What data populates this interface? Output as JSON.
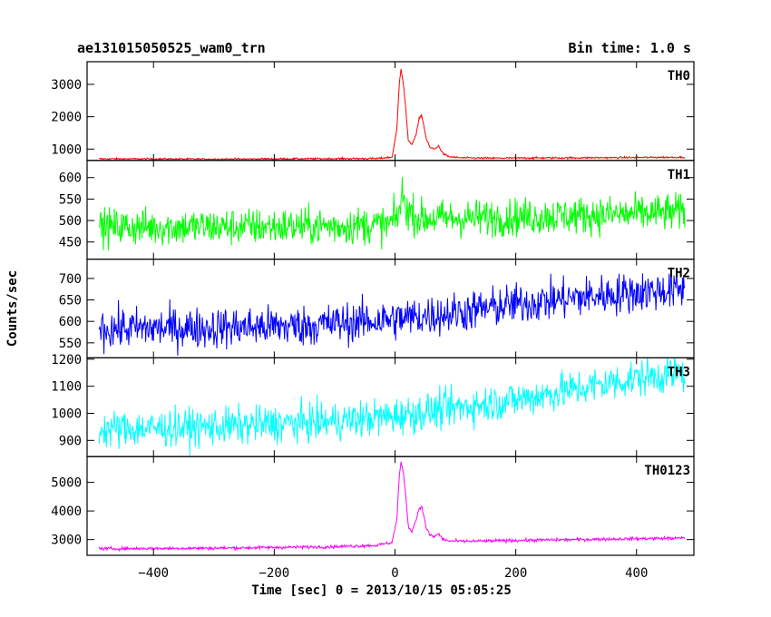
{
  "header": {
    "title": "ae131015050525_wam0_trn",
    "bin_time": "Bin time: 1.0 s"
  },
  "chart_data": {
    "type": "line",
    "title": "ae131015050525_wam0_trn",
    "subtitle": "Bin time: 1.0 s",
    "xlabel": "Time [sec] 0 = 2013/10/15 05:05:25",
    "ylabel": "Counts/sec",
    "xlim": [
      -510,
      495
    ],
    "x_ticks": [
      -400,
      -200,
      0,
      200,
      400
    ],
    "grid": false,
    "panels": [
      {
        "name": "TH0",
        "color": "#ff0000",
        "ylim": [
          650,
          3700
        ],
        "y_ticks": [
          1000,
          2000,
          3000
        ],
        "noise": 14,
        "x": [
          -490,
          -300,
          -100,
          -30,
          -5,
          3,
          7,
          10,
          14,
          18,
          22,
          28,
          35,
          40,
          44,
          48,
          52,
          58,
          65,
          72,
          80,
          90,
          110,
          150,
          200,
          300,
          400,
          480
        ],
        "y": [
          700,
          690,
          705,
          710,
          750,
          1600,
          3000,
          3500,
          3000,
          2200,
          1250,
          1150,
          1450,
          1950,
          2050,
          1700,
          1300,
          1050,
          1000,
          1100,
          850,
          760,
          730,
          720,
          725,
          730,
          740,
          750
        ]
      },
      {
        "name": "TH1",
        "color": "#00ff00",
        "ylim": [
          410,
          640
        ],
        "y_ticks": [
          450,
          500,
          550,
          600
        ],
        "noise": 22,
        "x": [
          -490,
          -300,
          -100,
          -10,
          5,
          12,
          20,
          40,
          100,
          200,
          300,
          400,
          480
        ],
        "y": [
          485,
          485,
          487,
          490,
          510,
          560,
          525,
          505,
          505,
          508,
          512,
          515,
          520
        ]
      },
      {
        "name": "TH2",
        "color": "#0000ff",
        "ylim": [
          515,
          745
        ],
        "y_ticks": [
          550,
          600,
          650,
          700
        ],
        "noise": 24,
        "x": [
          -490,
          -300,
          -150,
          0,
          100,
          200,
          300,
          400,
          480
        ],
        "y": [
          583,
          585,
          590,
          605,
          620,
          640,
          655,
          668,
          675
        ]
      },
      {
        "name": "TH3",
        "color": "#00ffff",
        "ylim": [
          840,
          1205
        ],
        "y_ticks": [
          900,
          1000,
          1100,
          1200
        ],
        "noise": 35,
        "x": [
          -490,
          -300,
          -100,
          0,
          100,
          200,
          300,
          400,
          480
        ],
        "y": [
          940,
          950,
          970,
          990,
          1020,
          1050,
          1090,
          1130,
          1150
        ]
      },
      {
        "name": "TH0123",
        "color": "#ff00ff",
        "ylim": [
          2450,
          5900
        ],
        "y_ticks": [
          3000,
          4000,
          5000
        ],
        "noise": 28,
        "x": [
          -490,
          -300,
          -100,
          -30,
          -5,
          3,
          7,
          10,
          14,
          18,
          22,
          28,
          35,
          40,
          44,
          48,
          52,
          58,
          65,
          72,
          80,
          90,
          110,
          150,
          200,
          300,
          400,
          480
        ],
        "y": [
          2680,
          2700,
          2750,
          2800,
          2900,
          3700,
          5200,
          5700,
          5300,
          4500,
          3450,
          3300,
          3700,
          4100,
          4150,
          3800,
          3400,
          3150,
          3100,
          3200,
          3000,
          2950,
          2940,
          2950,
          2970,
          3000,
          3030,
          3050
        ]
      }
    ]
  }
}
